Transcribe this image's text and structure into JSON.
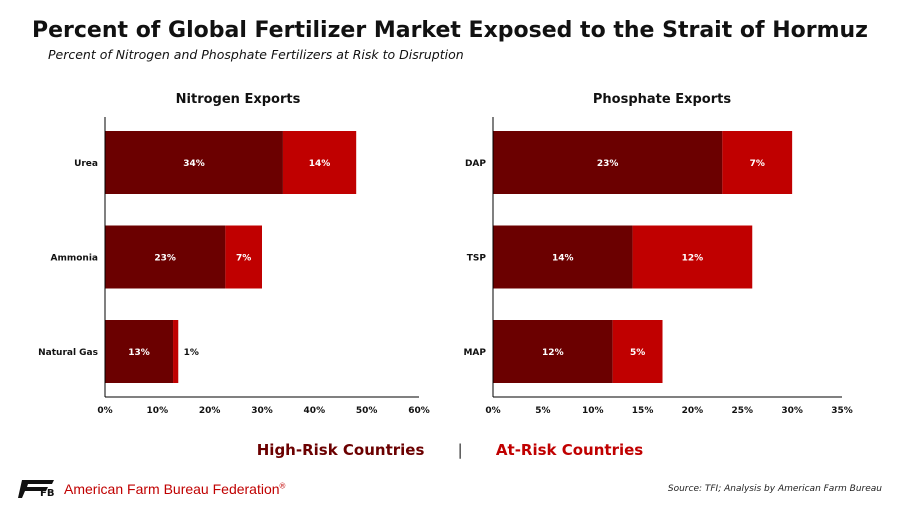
{
  "title": "Percent of Global Fertilizer Market Exposed to the Strait of Hormuz",
  "subtitle": "Percent of Nitrogen and Phosphate Fertilizers at Risk to Disruption",
  "colors": {
    "high_risk": "#6b0000",
    "at_risk": "#c00000",
    "axis": "#000000"
  },
  "legend": {
    "high_risk": "High-Risk Countries",
    "separator": "|",
    "at_risk": "At-Risk Countries"
  },
  "footer": {
    "org": "American Farm Bureau Federation",
    "org_mark": "®",
    "logo_text": "FB",
    "source": "Source: TFI; Analysis by American Farm Bureau"
  },
  "chart_data": [
    {
      "type": "bar",
      "orientation": "horizontal",
      "stacked": true,
      "title": "Nitrogen Exports",
      "categories": [
        "Urea",
        "Ammonia",
        "Natural Gas"
      ],
      "series": [
        {
          "name": "High-Risk Countries",
          "values": [
            34,
            23,
            13
          ],
          "labels": [
            "34%",
            "23%",
            "13%"
          ]
        },
        {
          "name": "At-Risk Countries",
          "values": [
            14,
            7,
            1
          ],
          "labels": [
            "14%",
            "7%",
            "1%"
          ]
        }
      ],
      "xlim": [
        0,
        60
      ],
      "xticks": [
        0,
        10,
        20,
        30,
        40,
        50,
        60
      ],
      "xtick_labels": [
        "0%",
        "10%",
        "20%",
        "30%",
        "40%",
        "50%",
        "60%"
      ]
    },
    {
      "type": "bar",
      "orientation": "horizontal",
      "stacked": true,
      "title": "Phosphate Exports",
      "categories": [
        "DAP",
        "TSP",
        "MAP"
      ],
      "series": [
        {
          "name": "High-Risk Countries",
          "values": [
            23,
            14,
            12
          ],
          "labels": [
            "23%",
            "14%",
            "12%"
          ]
        },
        {
          "name": "At-Risk Countries",
          "values": [
            7,
            12,
            5
          ],
          "labels": [
            "7%",
            "12%",
            "5%"
          ]
        }
      ],
      "xlim": [
        0,
        35
      ],
      "xticks": [
        0,
        5,
        10,
        15,
        20,
        25,
        30,
        35
      ],
      "xtick_labels": [
        "0%",
        "5%",
        "10%",
        "15%",
        "20%",
        "25%",
        "30%",
        "35%"
      ]
    }
  ]
}
